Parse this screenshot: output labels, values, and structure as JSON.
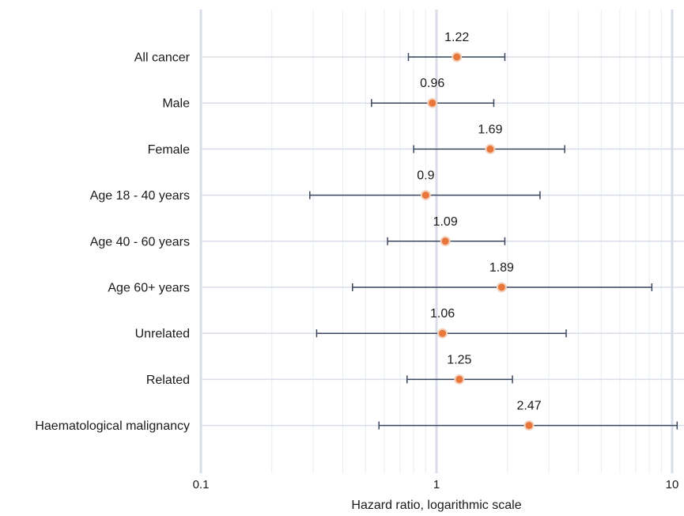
{
  "chart_data": {
    "type": "scatter",
    "title": "",
    "xlabel": "Hazard ratio, logarithmic scale",
    "ylabel": "",
    "x_scale": "log",
    "xlim": [
      0.1,
      10
    ],
    "x_ticks": [
      {
        "value": 0.1,
        "label": "0.1"
      },
      {
        "value": 1,
        "label": "1"
      },
      {
        "value": 10,
        "label": "10"
      }
    ],
    "grid": true,
    "legend": "none",
    "colors": {
      "point": "#e8753a",
      "point_outline": "#f3d2bd",
      "error_bar": "#3a475e",
      "grid_major": "#d8dee8",
      "grid_minor": "#e9edf3",
      "axis_label": "#1a1a1a"
    },
    "categories": [
      "All cancer",
      "Male",
      "Female",
      "Age 18 - 40 years",
      "Age 40 - 60 years",
      "Age 60+ years",
      "Unrelated",
      "Related",
      "Haematological malignancy"
    ],
    "values": [
      1.22,
      0.96,
      1.69,
      0.9,
      1.09,
      1.89,
      1.06,
      1.25,
      2.47
    ],
    "value_labels": [
      "1.22",
      "0.96",
      "1.69",
      "0.9",
      "1.09",
      "1.89",
      "1.06",
      "1.25",
      "2.47"
    ],
    "ci_lower": [
      0.76,
      0.53,
      0.8,
      0.29,
      0.62,
      0.44,
      0.31,
      0.75,
      0.57
    ],
    "ci_upper": [
      1.95,
      1.75,
      3.5,
      2.75,
      1.95,
      8.2,
      3.55,
      2.1,
      10.5
    ]
  }
}
